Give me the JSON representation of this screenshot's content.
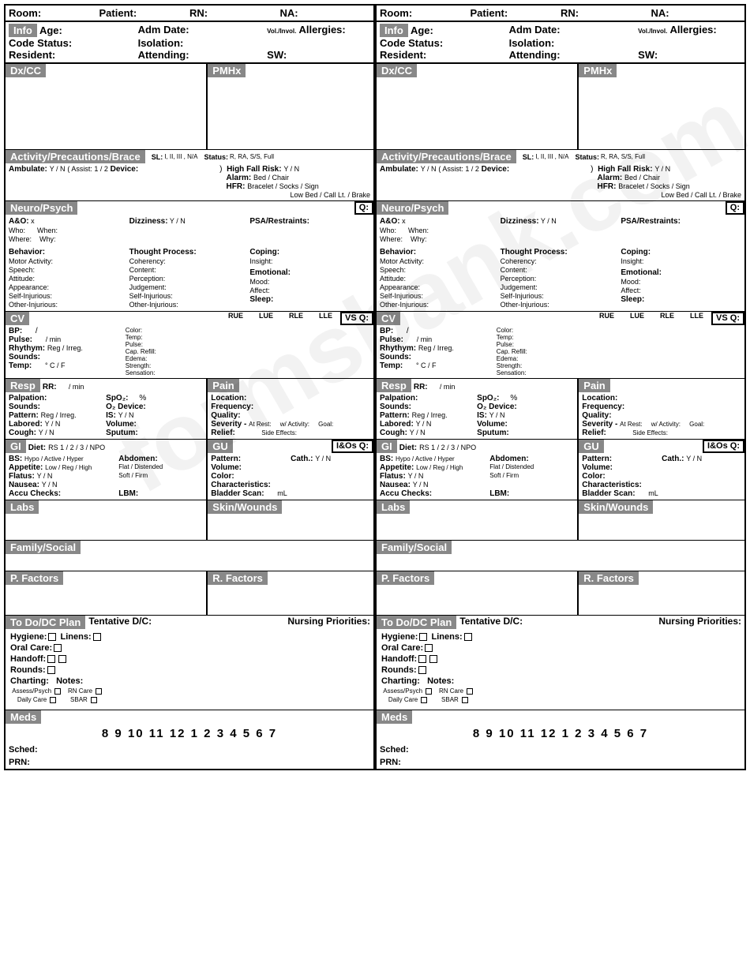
{
  "watermark": "formsbank.com",
  "hdr": {
    "room": "Room:",
    "patient": "Patient:",
    "rn": "RN:",
    "na": "NA:"
  },
  "info": {
    "pill": "Info",
    "age": "Age:",
    "adm": "Adm Date:",
    "volinvol": "Vol./Invol.",
    "allergies": "Allergies:",
    "code": "Code Status:",
    "iso": "Isolation:",
    "resident": "Resident:",
    "attending": "Attending:",
    "sw": "SW:"
  },
  "dx": {
    "dxcc": "Dx/CC",
    "pmhx": "PMHx"
  },
  "act": {
    "pill": "Activity/Precautions/Brace",
    "sl": "SL:",
    "slvals": "I, II, III , N/A",
    "status": "Status:",
    "statusvals": "R, RA, S/S, Full",
    "ambulate": "Ambulate:",
    "yn": "Y / N",
    "assist": "( Assist: 1 / 2",
    "device": "Device:",
    "paren": ")",
    "hfr": "High Fall Risk:",
    "alarm": "Alarm:",
    "alarmvals": "Bed / Chair",
    "hfr2": "HFR:",
    "hfrvals": "Bracelet / Socks / Sign",
    "lowbed": "Low Bed / Call Lt. / Brake"
  },
  "neuro": {
    "pill": "Neuro/Psych",
    "q": "Q:",
    "aox": "A&O:",
    "x": "x",
    "dizz": "Dizziness:",
    "yn": "Y / N",
    "psa": "PSA/Restraints:",
    "who": "Who:",
    "when": "When:",
    "where": "Where:",
    "why": "Why:",
    "behavior": "Behavior:",
    "motor": "Motor Activity:",
    "speech": "Speech:",
    "attitude": "Attitude:",
    "appearance": "Appearance:",
    "selfinj": "Self-Injurious:",
    "otherinj": "Other-Injurious:",
    "thought": "Thought Process:",
    "coherency": "Coherency:",
    "content": "Content:",
    "perception": "Perception:",
    "judgement": "Judgement:",
    "coping": "Coping:",
    "insight": "Insight:",
    "emotional": "Emotional:",
    "mood": "Mood:",
    "affect": "Affect:",
    "sleep": "Sleep:"
  },
  "cv": {
    "pill": "CV",
    "rue": "RUE",
    "lue": "LUE",
    "rle": "RLE",
    "lle": "LLE",
    "vsq": "VS Q:",
    "bp": "BP:",
    "slash": "/",
    "pulse": "Pulse:",
    "permin": "/ min",
    "rhythm": "Rhythym:",
    "regirreg": "Reg / Irreg.",
    "sounds": "Sounds:",
    "temp": "Temp:",
    "cf": "° C / F",
    "color": "Color:",
    "temp2": "Temp:",
    "pulse2": "Pulse:",
    "caprefill": "Cap. Refill:",
    "edema": "Edema:",
    "strength": "Strength:",
    "sensation": "Sensation:"
  },
  "resp": {
    "pill": "Resp",
    "rr": "RR:",
    "permin": "/ min",
    "palpation": "Palpation:",
    "spo2": "SpO₂:",
    "pct": "%",
    "sounds": "Sounds:",
    "o2dev": "O₂ Device:",
    "pattern": "Pattern:",
    "regirreg": "Reg / Irreg.",
    "is": "IS:",
    "yn": "Y / N",
    "labored": "Labored:",
    "volume": "Volume:",
    "cough": "Cough:",
    "sputum": "Sputum:"
  },
  "pain": {
    "pill": "Pain",
    "location": "Location:",
    "frequency": "Frequency:",
    "quality": "Quality:",
    "severity": "Severity -",
    "atrest": "At Rest:",
    "wact": "w/ Activity:",
    "goal": "Goal:",
    "relief": "Relief:",
    "sidefx": "Side Effects:"
  },
  "gi": {
    "pill": "GI",
    "diet": "Diet:",
    "dietvals": "RS 1 / 2 / 3 / NPO",
    "bs": "BS:",
    "bsvals": "Hypo / Active / Hyper",
    "abdomen": "Abdomen:",
    "appetite": "Appetite:",
    "appvals": "Low / Reg / High",
    "flatdist": "Flat / Distended",
    "flatus": "Flatus:",
    "yn": "Y / N",
    "softfirm": "Soft / Firm",
    "nausea": "Nausea:",
    "accu": "Accu Checks:",
    "lbm": "LBM:"
  },
  "gu": {
    "pill": "GU",
    "ioq": "I&Os Q:",
    "pattern": "Pattern:",
    "cath": "Cath.:",
    "yn": "Y / N",
    "volume": "Volume:",
    "color": "Color:",
    "char": "Characteristics:",
    "bladder": "Bladder Scan:",
    "ml": "mL"
  },
  "labs": {
    "pill": "Labs"
  },
  "skin": {
    "pill": "Skin/Wounds"
  },
  "fam": {
    "pill": "Family/Social"
  },
  "pfac": {
    "pill": "P. Factors"
  },
  "rfac": {
    "pill": "R. Factors"
  },
  "todo": {
    "pill": "To Do/DC Plan",
    "tentdc": "Tentative D/C:",
    "nursprio": "Nursing Priorities:",
    "hygiene": "Hygiene:",
    "linens": "Linens:",
    "oralcare": "Oral Care:",
    "handoff": "Handoff:",
    "rounds": "Rounds:",
    "charting": "Charting:",
    "notes": "Notes:",
    "assesspsych": "Assess/Psych",
    "rncare": "RN Care",
    "dailycare": "Daily Care",
    "sbar": "SBAR"
  },
  "meds": {
    "pill": "Meds",
    "hours": "8  9  10  11  12   1   2   3   4   5   6   7",
    "sched": "Sched:",
    "prn": "PRN:"
  }
}
